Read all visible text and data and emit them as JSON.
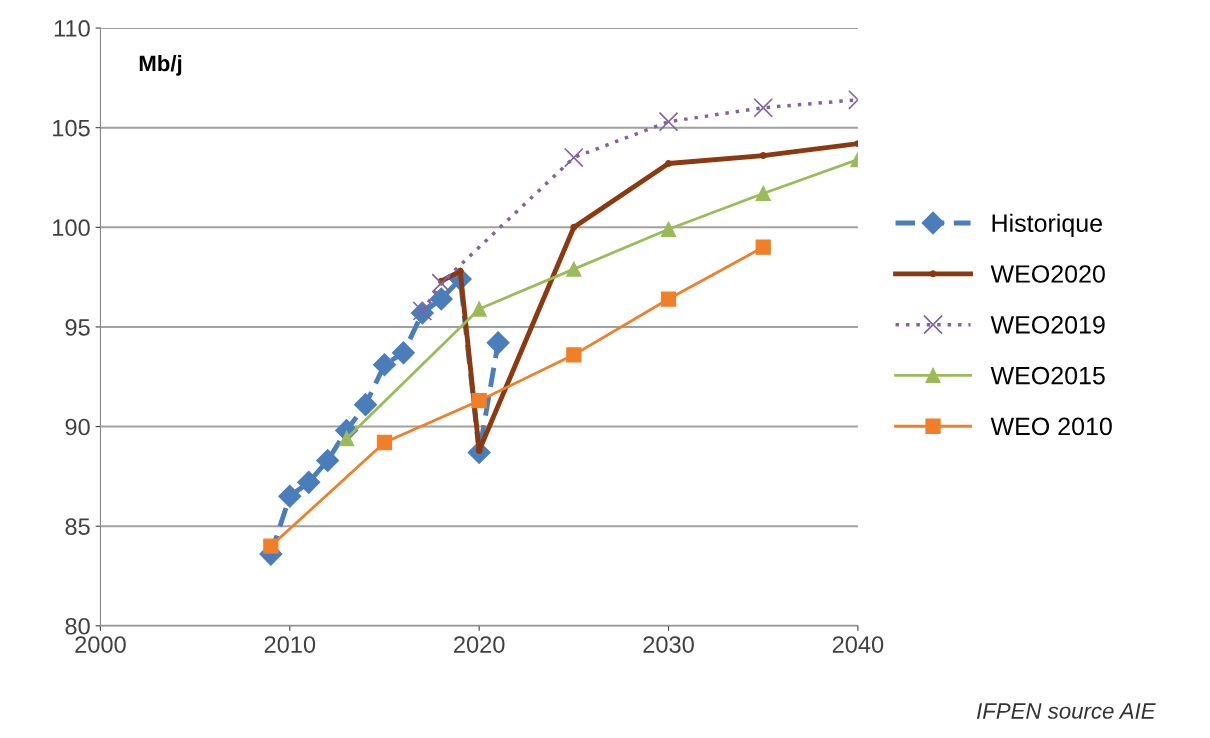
{
  "chart_data": {
    "type": "line",
    "xlim": [
      2000,
      2040
    ],
    "xticks": [
      2000,
      2010,
      2020,
      2030,
      2040
    ],
    "ylim": [
      80,
      110
    ],
    "yticks": [
      80,
      85,
      90,
      95,
      100,
      105,
      110
    ],
    "grid": "y",
    "legend": "right",
    "annotations": [
      "Mb/j",
      "IFPEN source AIE"
    ],
    "series": [
      {
        "name": "Historique",
        "color": "#4a7ebb",
        "line_style": "dashed",
        "marker": "diamond",
        "x": [
          2009,
          2010,
          2011,
          2012,
          2013,
          2014,
          2015,
          2016,
          2017,
          2018,
          2019,
          2020,
          2021
        ],
        "values": [
          83.6,
          86.5,
          87.2,
          88.3,
          89.8,
          91.1,
          93.1,
          93.7,
          95.7,
          96.4,
          97.4,
          88.7,
          94.2
        ]
      },
      {
        "name": "WEO2020",
        "color": "#8b3a0f",
        "line_style": "solid",
        "marker": "circle",
        "x": [
          2018,
          2019,
          2020,
          2025,
          2030,
          2035,
          2040
        ],
        "values": [
          97.3,
          97.8,
          88.8,
          100.0,
          103.2,
          103.6,
          104.2
        ]
      },
      {
        "name": "WEO2019",
        "color": "#8064a2",
        "line_style": "dotted",
        "marker": "cross",
        "x": [
          2017,
          2018,
          2025,
          2030,
          2035,
          2040
        ],
        "values": [
          95.8,
          97.2,
          103.5,
          105.3,
          106.0,
          106.4
        ]
      },
      {
        "name": "WEO2015",
        "color": "#9bbb59",
        "line_style": "solid",
        "marker": "triangle",
        "x": [
          2013,
          2020,
          2025,
          2030,
          2035,
          2040
        ],
        "values": [
          89.4,
          95.9,
          97.9,
          99.9,
          101.7,
          103.4
        ]
      },
      {
        "name": "WEO 2010",
        "color": "#f07f28",
        "line_style": "solid",
        "marker": "square",
        "x": [
          2009,
          2015,
          2020,
          2025,
          2030,
          2035
        ],
        "values": [
          84.0,
          89.2,
          91.3,
          93.6,
          96.4,
          99.0
        ]
      }
    ]
  }
}
